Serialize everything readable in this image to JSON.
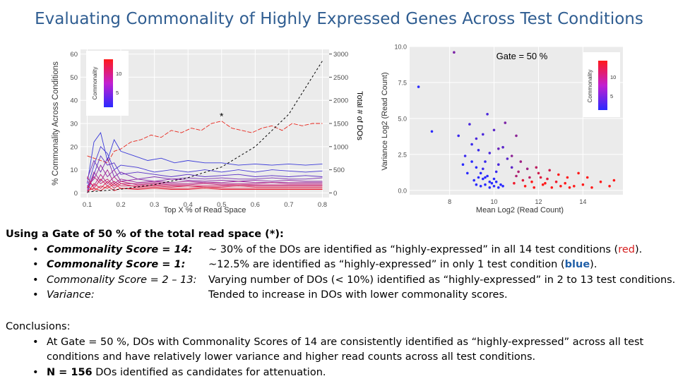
{
  "slide_title": "Evaluating Commonality of Highly Expressed Genes Across Test Conditions",
  "chart_data": [
    {
      "type": "line",
      "xlabel": "Top X % of Read Space",
      "ylabel": "% Commonality Across Conditions",
      "y2label": "Total # of DOs",
      "x_ticks": [
        "0.1",
        "0.2",
        "0.3",
        "0.4",
        "0.5",
        "0.6",
        "0.7",
        "0.8"
      ],
      "y_ticks": [
        "0",
        "10",
        "20",
        "30",
        "40",
        "50",
        "60"
      ],
      "y2_ticks": [
        "0",
        "500",
        "1000",
        "1500",
        "2000",
        "2500",
        "3000"
      ],
      "xlim": [
        0.08,
        0.82
      ],
      "ylim": [
        -2,
        62
      ],
      "y2lim": [
        -100,
        3100
      ],
      "legend_title": "Commonality",
      "legend_ticks": [
        "5",
        "10"
      ],
      "legend_placement": "top-left",
      "annotation": "*",
      "annotation_x": 0.5,
      "annotation_y": 31,
      "grid": true,
      "total_dos": {
        "x": [
          0.1,
          0.2,
          0.3,
          0.4,
          0.5,
          0.6,
          0.7,
          0.8
        ],
        "values": [
          20,
          80,
          180,
          330,
          560,
          1000,
          1700,
          2850
        ]
      },
      "series": [
        {
          "commonality": 14,
          "color": "#e8261c",
          "x": [
            0.1,
            0.12,
            0.14,
            0.16,
            0.18,
            0.2,
            0.23,
            0.26,
            0.29,
            0.32,
            0.35,
            0.38,
            0.41,
            0.44,
            0.47,
            0.5,
            0.53,
            0.56,
            0.59,
            0.62,
            0.65,
            0.68,
            0.71,
            0.74,
            0.77,
            0.8
          ],
          "values": [
            16,
            15,
            14,
            13,
            18,
            19,
            22,
            23,
            25,
            24,
            27,
            26,
            28,
            27,
            30,
            31,
            28,
            27,
            26,
            28,
            29,
            27,
            30,
            29,
            30,
            30
          ]
        },
        {
          "commonality": 1,
          "color": "#3b3bd9",
          "x": [
            0.1,
            0.12,
            0.14,
            0.16,
            0.18,
            0.2,
            0.24,
            0.28,
            0.32,
            0.36,
            0.4,
            0.45,
            0.5,
            0.55,
            0.6,
            0.65,
            0.7,
            0.75,
            0.8
          ],
          "values": [
            4,
            22,
            26,
            14,
            23,
            18,
            16,
            14,
            15,
            13,
            14,
            13,
            13,
            12,
            12.5,
            12,
            12.5,
            12,
            12.5
          ]
        },
        {
          "commonality": 2,
          "color": "#4436d4",
          "x": [
            0.1,
            0.12,
            0.14,
            0.16,
            0.18,
            0.2,
            0.25,
            0.3,
            0.35,
            0.4,
            0.45,
            0.5,
            0.55,
            0.6,
            0.65,
            0.7,
            0.75,
            0.8
          ],
          "values": [
            2,
            12,
            20,
            17,
            10,
            12,
            11,
            9,
            10,
            9,
            10,
            9,
            10,
            9,
            10,
            9.5,
            9,
            9.5
          ]
        },
        {
          "commonality": 3,
          "color": "#5a30c6",
          "x": [
            0.1,
            0.12,
            0.14,
            0.16,
            0.18,
            0.2,
            0.25,
            0.3,
            0.35,
            0.4,
            0.45,
            0.5,
            0.55,
            0.6,
            0.65,
            0.7,
            0.75,
            0.8
          ],
          "values": [
            0,
            8,
            16,
            12,
            13,
            8,
            9,
            8,
            7,
            8,
            7,
            7.5,
            8,
            7,
            7.5,
            7,
            7.5,
            7
          ]
        },
        {
          "commonality": 4,
          "color": "#7a2cb4",
          "x": [
            0.1,
            0.12,
            0.14,
            0.16,
            0.18,
            0.2,
            0.25,
            0.3,
            0.35,
            0.4,
            0.45,
            0.5,
            0.55,
            0.6,
            0.65,
            0.7,
            0.75,
            0.8
          ],
          "values": [
            6,
            14,
            9,
            15,
            7,
            9,
            6,
            7,
            6,
            6.5,
            6,
            6.5,
            6,
            6,
            6.5,
            6,
            6,
            6.5
          ]
        },
        {
          "commonality": 5,
          "color": "#8e28a6",
          "x": [
            0.1,
            0.12,
            0.14,
            0.16,
            0.18,
            0.2,
            0.25,
            0.3,
            0.35,
            0.4,
            0.45,
            0.5,
            0.55,
            0.6,
            0.65,
            0.7,
            0.75,
            0.8
          ],
          "values": [
            3,
            6,
            12,
            7,
            10,
            5,
            6,
            5,
            6,
            5.5,
            5,
            5.5,
            5,
            5.5,
            5,
            5.5,
            5,
            5
          ]
        },
        {
          "commonality": 6,
          "color": "#a22596",
          "x": [
            0.1,
            0.12,
            0.14,
            0.16,
            0.18,
            0.2,
            0.25,
            0.3,
            0.35,
            0.4,
            0.45,
            0.5,
            0.55,
            0.6,
            0.65,
            0.7,
            0.75,
            0.8
          ],
          "values": [
            1,
            9,
            5,
            10,
            4,
            6,
            4.5,
            5,
            4.5,
            5,
            4.5,
            4.5,
            5,
            4.5,
            4.5,
            4.5,
            4.5,
            4.5
          ]
        },
        {
          "commonality": 7,
          "color": "#b52286",
          "x": [
            0.1,
            0.12,
            0.14,
            0.16,
            0.18,
            0.2,
            0.25,
            0.3,
            0.35,
            0.4,
            0.45,
            0.5,
            0.55,
            0.6,
            0.65,
            0.7,
            0.75,
            0.8
          ],
          "values": [
            5,
            3,
            8,
            4,
            7,
            4,
            4,
            4.5,
            4,
            4,
            4.5,
            4,
            4,
            4,
            4.5,
            4,
            4,
            4
          ]
        },
        {
          "commonality": 8,
          "color": "#c41f74",
          "x": [
            0.1,
            0.12,
            0.14,
            0.16,
            0.18,
            0.2,
            0.25,
            0.3,
            0.35,
            0.4,
            0.45,
            0.5,
            0.55,
            0.6,
            0.65,
            0.7,
            0.75,
            0.8
          ],
          "values": [
            2,
            7,
            4,
            6,
            3,
            5,
            3.5,
            4,
            3.5,
            3.5,
            4,
            3.5,
            3.5,
            3.5,
            3.5,
            3.5,
            3.5,
            3.5
          ]
        },
        {
          "commonality": 9,
          "color": "#d11d62",
          "x": [
            0.1,
            0.12,
            0.14,
            0.16,
            0.18,
            0.2,
            0.25,
            0.3,
            0.35,
            0.4,
            0.45,
            0.5,
            0.55,
            0.6,
            0.65,
            0.7,
            0.75,
            0.8
          ],
          "values": [
            7,
            2,
            6,
            3,
            5,
            3,
            3,
            3.5,
            3,
            3,
            3,
            3,
            3.5,
            3,
            3,
            3,
            3,
            3
          ]
        },
        {
          "commonality": 10,
          "color": "#da1c50",
          "x": [
            0.1,
            0.12,
            0.14,
            0.16,
            0.18,
            0.2,
            0.25,
            0.3,
            0.35,
            0.4,
            0.45,
            0.5,
            0.55,
            0.6,
            0.65,
            0.7,
            0.75,
            0.8
          ],
          "values": [
            0,
            4,
            2,
            5,
            2,
            4,
            2.5,
            3,
            2.5,
            3,
            2.5,
            2.5,
            3,
            2.5,
            2.5,
            2.5,
            2.5,
            2.5
          ]
        },
        {
          "commonality": 11,
          "color": "#e11b3f",
          "x": [
            0.1,
            0.12,
            0.14,
            0.16,
            0.18,
            0.2,
            0.25,
            0.3,
            0.35,
            0.4,
            0.45,
            0.5,
            0.55,
            0.6,
            0.65,
            0.7,
            0.75,
            0.8
          ],
          "values": [
            3,
            1,
            3,
            2,
            4,
            2,
            2,
            2.5,
            2,
            2,
            2.5,
            2,
            2,
            2,
            2,
            2,
            2,
            2
          ]
        },
        {
          "commonality": 12,
          "color": "#e51b30",
          "x": [
            0.1,
            0.12,
            0.14,
            0.16,
            0.18,
            0.2,
            0.25,
            0.3,
            0.35,
            0.4,
            0.45,
            0.5,
            0.55,
            0.6,
            0.65,
            0.7,
            0.75,
            0.8
          ],
          "values": [
            1,
            2,
            1,
            3,
            1,
            2,
            1.5,
            2,
            1.5,
            1.5,
            2,
            1.5,
            1.5,
            1.5,
            1.5,
            1.5,
            1.5,
            1.5
          ]
        }
      ]
    },
    {
      "type": "scatter",
      "title": "Gate = 50 %",
      "xlabel": "Mean Log2 (Read Count)",
      "ylabel": "Variance Log2 (Read Count)",
      "x_ticks": [
        "8",
        "10",
        "12",
        "14"
      ],
      "y_ticks": [
        "0.0",
        "2.5",
        "5.0",
        "7.5",
        "10.0"
      ],
      "xlim": [
        6.2,
        15.8
      ],
      "ylim": [
        -0.3,
        10.0
      ],
      "legend_title": "Commonality",
      "legend_ticks": [
        "5",
        "10"
      ],
      "legend_placement": "top-right",
      "grid": true,
      "points_low": [
        [
          6.6,
          7.2,
          1
        ],
        [
          7.2,
          4.1,
          1
        ],
        [
          9.0,
          2.0,
          1
        ],
        [
          9.2,
          1.6,
          1
        ],
        [
          9.4,
          1.2,
          1
        ],
        [
          9.5,
          0.8,
          1
        ],
        [
          9.6,
          0.4,
          1
        ],
        [
          9.8,
          0.6,
          1
        ],
        [
          10.0,
          0.3,
          1
        ],
        [
          10.2,
          0.2,
          1
        ],
        [
          9.3,
          0.9,
          1
        ],
        [
          9.7,
          1.0,
          1
        ],
        [
          9.1,
          0.7,
          1
        ],
        [
          9.9,
          0.5,
          1
        ],
        [
          10.1,
          0.6,
          1
        ],
        [
          10.3,
          0.4,
          1
        ],
        [
          9.4,
          0.3,
          1
        ],
        [
          9.6,
          0.9,
          1
        ],
        [
          8.6,
          1.8,
          1
        ],
        [
          8.8,
          1.2,
          1
        ],
        [
          9.2,
          0.4,
          1
        ],
        [
          10.4,
          0.3,
          1
        ],
        [
          9.8,
          0.2,
          1
        ],
        [
          10.0,
          0.8,
          1
        ],
        [
          9.5,
          1.5,
          2
        ],
        [
          9.0,
          3.2,
          2
        ],
        [
          8.7,
          2.4,
          2
        ],
        [
          9.3,
          2.8,
          2
        ],
        [
          8.4,
          3.8,
          2
        ],
        [
          9.6,
          2.0,
          2
        ],
        [
          10.1,
          1.3,
          2
        ],
        [
          9.2,
          3.6,
          3
        ],
        [
          9.8,
          2.6,
          3
        ],
        [
          10.2,
          1.8,
          3
        ],
        [
          8.9,
          4.6,
          3
        ],
        [
          9.5,
          3.9,
          3
        ],
        [
          9.7,
          5.3,
          3
        ],
        [
          10.4,
          3.0,
          4
        ],
        [
          10.6,
          2.2,
          4
        ],
        [
          10.0,
          4.2,
          4
        ],
        [
          10.8,
          1.6,
          4
        ],
        [
          10.2,
          2.9,
          5
        ]
      ],
      "points_high": [
        [
          8.2,
          9.6,
          6
        ],
        [
          10.5,
          4.7,
          6
        ],
        [
          11.0,
          3.8,
          7
        ],
        [
          10.8,
          2.4,
          7
        ],
        [
          11.2,
          2.0,
          8
        ],
        [
          11.5,
          1.5,
          8
        ],
        [
          11.0,
          1.0,
          9
        ],
        [
          11.6,
          0.9,
          10
        ],
        [
          12.0,
          1.2,
          11
        ],
        [
          12.4,
          0.8,
          12
        ],
        [
          12.8,
          0.6,
          13
        ],
        [
          13.2,
          0.5,
          14
        ],
        [
          13.6,
          0.3,
          14
        ],
        [
          14.0,
          0.4,
          14
        ],
        [
          14.4,
          0.2,
          14
        ],
        [
          14.8,
          0.6,
          14
        ],
        [
          15.4,
          0.7,
          14
        ],
        [
          15.2,
          0.3,
          14
        ],
        [
          11.4,
          0.3,
          14
        ],
        [
          11.8,
          0.2,
          14
        ],
        [
          12.2,
          0.4,
          14
        ],
        [
          12.6,
          0.2,
          14
        ],
        [
          13.0,
          0.3,
          14
        ],
        [
          13.4,
          0.2,
          14
        ],
        [
          11.7,
          0.6,
          14
        ],
        [
          12.3,
          0.5,
          14
        ],
        [
          12.9,
          1.1,
          14
        ],
        [
          13.8,
          1.2,
          14
        ],
        [
          10.9,
          0.5,
          13
        ],
        [
          11.3,
          0.7,
          12
        ],
        [
          11.9,
          1.6,
          10
        ],
        [
          12.5,
          1.4,
          11
        ],
        [
          13.3,
          0.9,
          14
        ],
        [
          14.2,
          0.9,
          14
        ],
        [
          11.1,
          1.3,
          9
        ],
        [
          12.1,
          0.9,
          12
        ]
      ]
    }
  ],
  "findings": {
    "heading": "Using a Gate of 50 % of the total read space (*):",
    "items": [
      {
        "label": "Commonality Score = 14:",
        "text_pre": "~ 30% of the DOs are identified as “highly-expressed” in all 14 test conditions (",
        "highlight": "red",
        "text_post": ")."
      },
      {
        "label": "Commonality Score = 1:",
        "text_pre": "~12.5% are identified as “highly-expressed” in only 1 test condition (",
        "highlight": "blue",
        "text_post": ")."
      },
      {
        "label": "Commonality Score = 2 – 13:",
        "text_pre": "Varying number of DOs (< 10%) identified as “highly-expressed” in 2 to 13 test conditions.",
        "highlight": "",
        "text_post": ""
      },
      {
        "label": "Variance:",
        "text_pre": "Tended to increase in DOs with lower commonality scores.",
        "highlight": "",
        "text_post": ""
      }
    ]
  },
  "conclusions": {
    "heading": "Conclusions:",
    "item1_line1": "At Gate = 50 %, DOs with Commonality Scores of 14 are consistently identified as “highly-expressed” across all test",
    "item1_line2": "conditions and have relatively lower variance and higher read counts across all test conditions.",
    "item2_bold": "N = 156",
    "item2_rest": " DOs identified as candidates for attenuation."
  },
  "bullet_glyph": "•"
}
